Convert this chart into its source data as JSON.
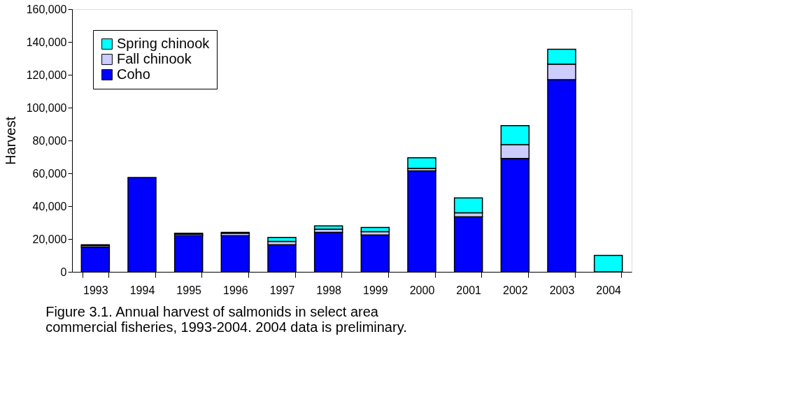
{
  "chart_data": {
    "type": "bar",
    "stacked": true,
    "ylabel": "Harvest",
    "categories": [
      "1993",
      "1994",
      "1995",
      "1996",
      "1997",
      "1998",
      "1999",
      "2000",
      "2001",
      "2002",
      "2003",
      "2004"
    ],
    "series": [
      {
        "name": "Coho",
        "color": "#0000ff",
        "values": [
          15000,
          57500,
          22000,
          22000,
          16500,
          24000,
          22500,
          61500,
          33500,
          69000,
          117000,
          null
        ]
      },
      {
        "name": "Fall chinook",
        "color": "#ccccff",
        "values": [
          1000,
          null,
          1000,
          1500,
          2000,
          2000,
          2000,
          1500,
          2500,
          8500,
          9500,
          null
        ]
      },
      {
        "name": "Spring chinook",
        "color": "#00ffff",
        "values": [
          500,
          null,
          500,
          500,
          2500,
          2000,
          2500,
          6500,
          9000,
          11500,
          9000,
          10000
        ]
      }
    ],
    "ylim": [
      0,
      160000
    ],
    "yticks": [
      0,
      {
        "value": 20000,
        "label": "20,000"
      },
      {
        "value": 40000,
        "label": "40,000"
      },
      {
        "value": 60000,
        "label": "60,000"
      },
      {
        "value": 80000,
        "label": "80,000"
      },
      {
        "value": 100000,
        "label": "100,000"
      },
      {
        "value": 120000,
        "label": "120,000"
      },
      {
        "value": 140000,
        "label": "140,000"
      },
      {
        "value": 160000,
        "label": "160,000"
      }
    ],
    "grid": false,
    "legend": "top left",
    "annotations": [
      "Figure 3.1.  Annual harvest of salmonids in select area commercial fisheries, 1993-2004.  2004 data is preliminary."
    ]
  }
}
